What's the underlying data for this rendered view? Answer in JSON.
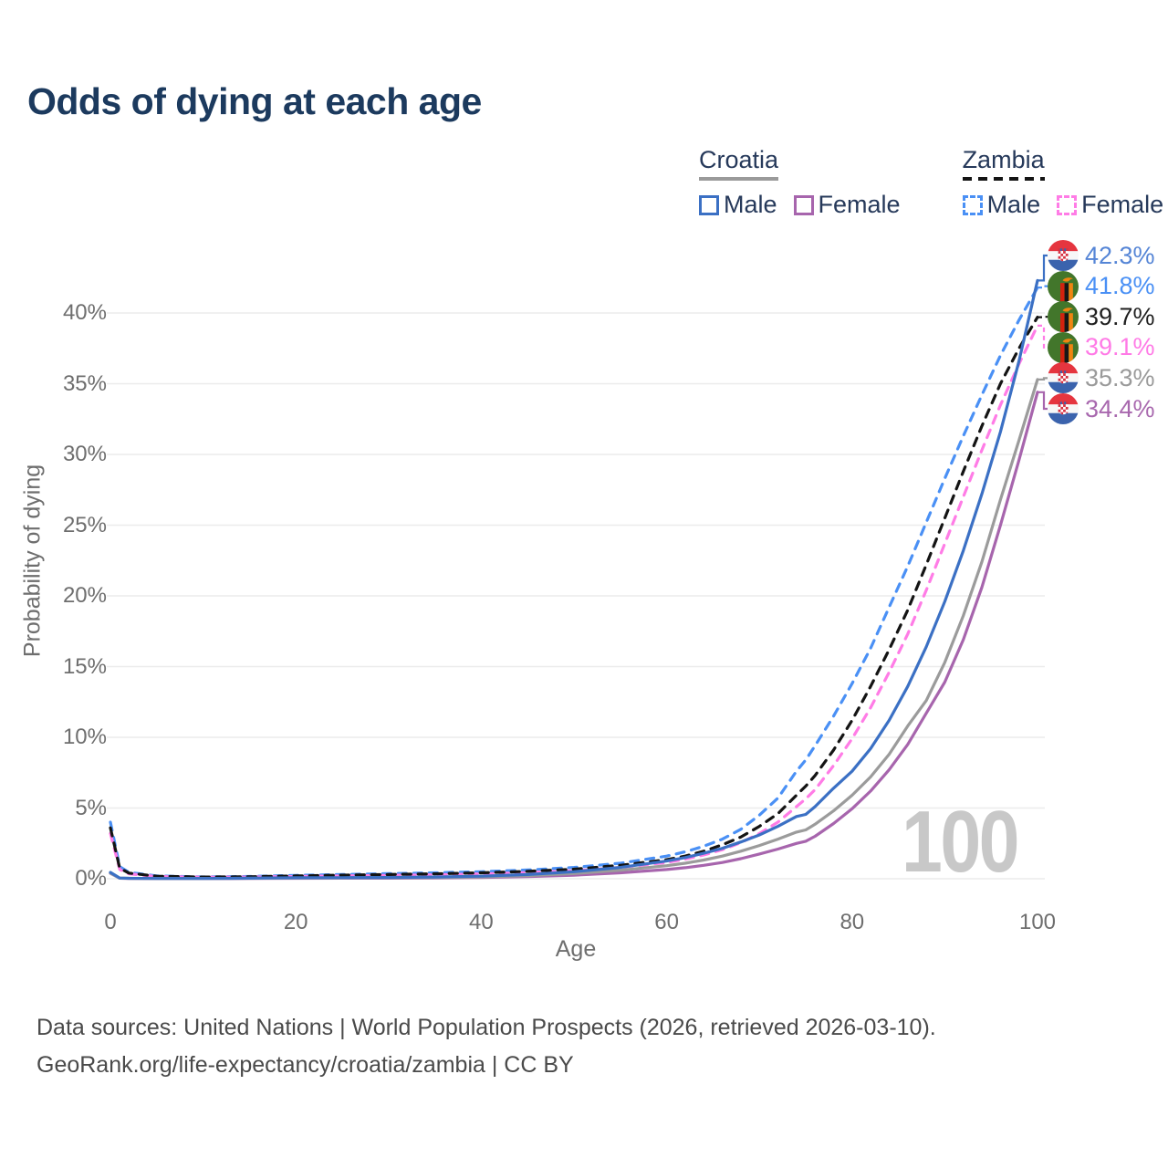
{
  "title": "Odds of dying at each age",
  "watermark_age": "100",
  "legend": {
    "groups": [
      {
        "country": "Croatia",
        "line_style": "solid",
        "underline_color": "#9a9a9a",
        "items": [
          {
            "label": "Male",
            "color": "#3b70c4"
          },
          {
            "label": "Female",
            "color": "#a765ad"
          }
        ]
      },
      {
        "country": "Zambia",
        "line_style": "dashed",
        "underline_color": "#141414",
        "items": [
          {
            "label": "Male",
            "color": "#4a90f5"
          },
          {
            "label": "Female",
            "color": "#ff7ce6"
          }
        ]
      }
    ]
  },
  "chart_data": {
    "type": "line",
    "title": "Odds of dying at each age",
    "xlabel": "Age",
    "ylabel": "Probability of dying",
    "xlim": [
      0,
      100
    ],
    "ylim_percent": [
      0,
      44
    ],
    "grid": true,
    "legend_position": "top-right",
    "x_ticks": [
      0,
      20,
      40,
      60,
      80,
      100
    ],
    "y_ticks": [
      {
        "label": "0%",
        "value": 0
      },
      {
        "label": "5%",
        "value": 5
      },
      {
        "label": "10%",
        "value": 10
      },
      {
        "label": "15%",
        "value": 15
      },
      {
        "label": "20%",
        "value": 20
      },
      {
        "label": "25%",
        "value": 25
      },
      {
        "label": "30%",
        "value": 30
      },
      {
        "label": "35%",
        "value": 35
      },
      {
        "label": "40%",
        "value": 40
      }
    ],
    "x": [
      0,
      1,
      2,
      5,
      10,
      15,
      20,
      25,
      30,
      35,
      40,
      45,
      50,
      55,
      60,
      62,
      64,
      66,
      68,
      70,
      72,
      74,
      75,
      76,
      78,
      80,
      82,
      84,
      86,
      88,
      90,
      92,
      94,
      96,
      98,
      100
    ],
    "series": [
      {
        "key": "croatia-male",
        "name": "Croatia Male",
        "country": "Croatia",
        "sex": "Male",
        "line": "solid",
        "color": "#3b70c4",
        "end_label": "42.3%",
        "end_label_color": "#5585d6",
        "end_value_percent": 42.3,
        "values": [
          0.45,
          0.05,
          0.03,
          0.02,
          0.02,
          0.04,
          0.07,
          0.08,
          0.09,
          0.12,
          0.18,
          0.3,
          0.5,
          0.8,
          1.25,
          1.5,
          1.8,
          2.15,
          2.6,
          3.1,
          3.7,
          4.4,
          4.55,
          5.1,
          6.4,
          7.6,
          9.2,
          11.2,
          13.6,
          16.4,
          19.6,
          23.2,
          27.2,
          31.6,
          36.6,
          42.3
        ]
      },
      {
        "key": "zambia-male",
        "name": "Zambia Male",
        "country": "Zambia",
        "sex": "Male",
        "line": "dashed",
        "color": "#4a90f5",
        "end_label": "41.8%",
        "end_label_color": "#4a90f5",
        "end_value_percent": 41.8,
        "values": [
          4.0,
          0.85,
          0.45,
          0.2,
          0.13,
          0.16,
          0.24,
          0.3,
          0.36,
          0.42,
          0.5,
          0.62,
          0.8,
          1.1,
          1.6,
          1.9,
          2.3,
          2.8,
          3.5,
          4.5,
          5.7,
          7.6,
          8.4,
          9.4,
          11.5,
          13.8,
          16.3,
          19.2,
          22.1,
          25.2,
          28.3,
          31.3,
          34.2,
          37.0,
          39.5,
          41.8
        ]
      },
      {
        "key": "zambia-both",
        "name": "Zambia Both sexes",
        "country": "Zambia",
        "sex": "Both",
        "line": "dashed",
        "color": "#141414",
        "end_label": "39.7%",
        "end_label_color": "#1f1f1f",
        "end_value_percent": 39.7,
        "values": [
          3.6,
          0.75,
          0.4,
          0.18,
          0.12,
          0.14,
          0.2,
          0.25,
          0.3,
          0.35,
          0.42,
          0.52,
          0.68,
          0.95,
          1.35,
          1.6,
          1.95,
          2.4,
          2.95,
          3.7,
          4.6,
          5.9,
          6.55,
          7.3,
          9.1,
          11.2,
          13.6,
          16.2,
          19.0,
          22.2,
          25.5,
          28.8,
          32.0,
          35.0,
          37.5,
          39.7
        ]
      },
      {
        "key": "zambia-female",
        "name": "Zambia Female",
        "country": "Zambia",
        "sex": "Female",
        "line": "dashed",
        "color": "#ff7ce6",
        "end_label": "39.1%",
        "end_label_color": "#ff7ae6",
        "end_value_percent": 39.1,
        "values": [
          3.2,
          0.65,
          0.35,
          0.16,
          0.11,
          0.12,
          0.16,
          0.2,
          0.24,
          0.28,
          0.34,
          0.43,
          0.57,
          0.8,
          1.15,
          1.38,
          1.68,
          2.05,
          2.55,
          3.2,
          4.0,
          5.1,
          5.65,
          6.3,
          8.0,
          9.9,
          12.1,
          14.6,
          17.3,
          20.4,
          23.7,
          27.0,
          30.3,
          33.5,
          36.4,
          39.1
        ]
      },
      {
        "key": "croatia-both",
        "name": "Croatia Both sexes",
        "country": "Croatia",
        "sex": "Both",
        "line": "solid",
        "color": "#9b9b9b",
        "end_label": "35.3%",
        "end_label_color": "#9a9a9a",
        "end_value_percent": 35.3,
        "values": [
          0.4,
          0.04,
          0.03,
          0.02,
          0.02,
          0.03,
          0.05,
          0.06,
          0.07,
          0.09,
          0.13,
          0.22,
          0.37,
          0.6,
          0.92,
          1.1,
          1.32,
          1.6,
          1.95,
          2.35,
          2.8,
          3.3,
          3.45,
          3.85,
          4.8,
          5.9,
          7.2,
          8.8,
          10.8,
          12.6,
          15.3,
          18.6,
          22.4,
          26.8,
          31.0,
          35.3
        ]
      },
      {
        "key": "croatia-female",
        "name": "Croatia Female",
        "country": "Croatia",
        "sex": "Female",
        "line": "solid",
        "color": "#a765ad",
        "end_label": "34.4%",
        "end_label_color": "#a868ae",
        "end_value_percent": 34.4,
        "values": [
          0.38,
          0.04,
          0.02,
          0.01,
          0.01,
          0.02,
          0.03,
          0.04,
          0.04,
          0.06,
          0.09,
          0.15,
          0.25,
          0.42,
          0.65,
          0.78,
          0.95,
          1.15,
          1.42,
          1.75,
          2.1,
          2.5,
          2.65,
          3.0,
          3.9,
          4.95,
          6.2,
          7.7,
          9.5,
          11.7,
          13.9,
          16.9,
          20.6,
          25.0,
          29.6,
          34.4
        ]
      }
    ]
  },
  "footer": {
    "line1": "Data sources: United Nations | World Population Prospects (2026, retrieved 2026-03-10).",
    "line2": "GeoRank.org/life-expectancy/croatia/zambia | CC BY"
  }
}
